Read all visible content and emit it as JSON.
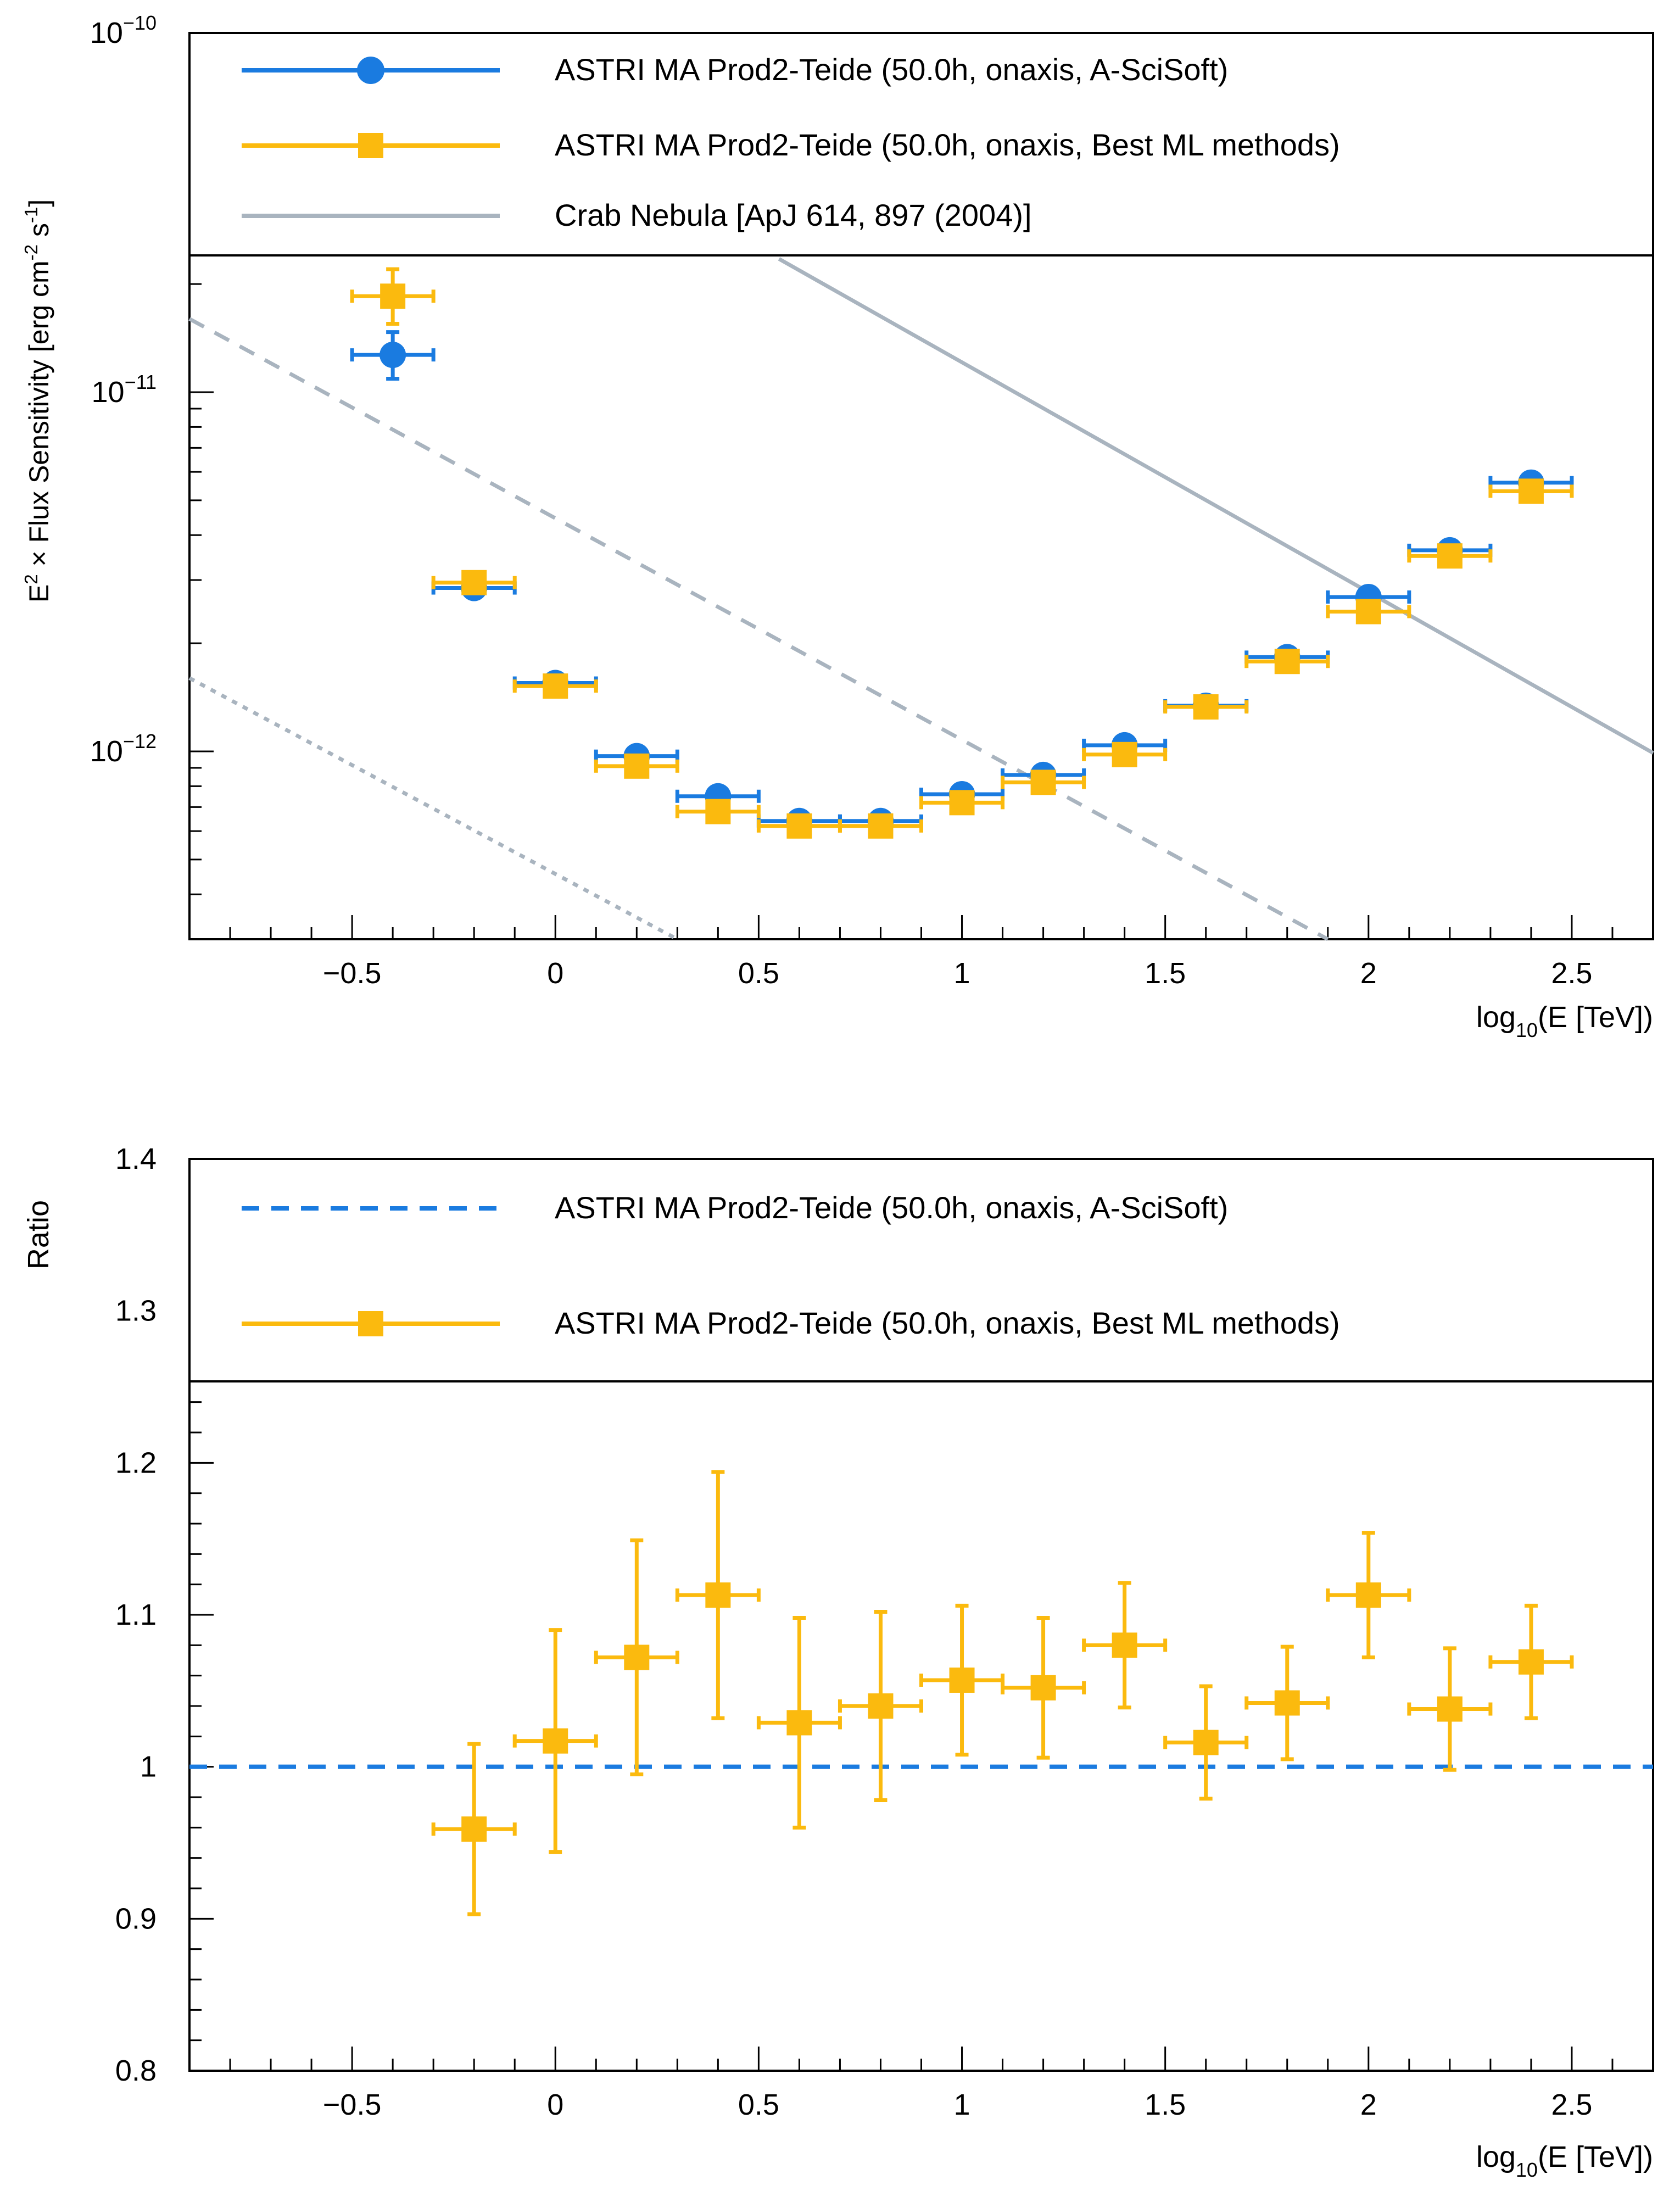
{
  "colors": {
    "blue": "#1a7be0",
    "orange": "#fbba0e",
    "gray": "#a9b4bf",
    "axis": "#000000"
  },
  "chart_data": [
    {
      "type": "scatter",
      "name": "sensitivity",
      "yscale": "log",
      "xlim": [
        -0.9,
        2.7
      ],
      "ylim": [
        3e-13,
        1e-10
      ],
      "ylabel_pre": "E",
      "ylabel_sup1": "2",
      "ylabel_mid": " × Flux Sensitivity [erg cm",
      "ylabel_sup2": "-2",
      "ylabel_mid2": " s",
      "ylabel_sup3": "-1",
      "ylabel_post": "]",
      "xlabel_pre": "log",
      "xlabel_sub": "10",
      "xlabel_post": "(E [TeV])",
      "xtick_labels": [
        "−0.5",
        "0",
        "0.5",
        "1",
        "1.5",
        "2",
        "2.5"
      ],
      "xtick_values": [
        -0.5,
        0,
        0.5,
        1,
        1.5,
        2,
        2.5
      ],
      "ytick_base": "10",
      "ytick_exps": [
        "−10",
        "−11",
        "−12"
      ],
      "ytick_values": [
        1e-10,
        1e-11,
        1e-12
      ],
      "legend": [
        {
          "label": "ASTRI MA Prod2-Teide (50.0h, onaxis, A-SciSoft)",
          "marker": "circle",
          "color": "blue"
        },
        {
          "label": "ASTRI MA Prod2-Teide (50.0h, onaxis, Best ML methods)",
          "marker": "square",
          "color": "orange"
        },
        {
          "label": "Crab Nebula [ApJ 614, 897 (2004)]",
          "marker": "none",
          "color": "gray"
        }
      ],
      "series": [
        {
          "name": "ASTRI MA Prod2-Teide (50.0h, onaxis, A-SciSoft)",
          "color": "blue",
          "marker": "circle",
          "x": [
            -0.4,
            -0.2,
            0.0,
            0.2,
            0.4,
            0.6,
            0.8,
            1.0,
            1.2,
            1.4,
            1.6,
            1.8,
            2.0,
            2.2,
            2.4
          ],
          "xerr": 0.1,
          "y": [
            1.27e-11,
            2.85e-12,
            1.55e-12,
            9.7e-13,
            7.5e-13,
            6.4e-13,
            6.4e-13,
            7.6e-13,
            8.6e-13,
            1.04e-12,
            1.34e-12,
            1.83e-12,
            2.69e-12,
            3.63e-12,
            5.6e-12
          ],
          "yerr_lo": [
            1.8e-12,
            0,
            0,
            0,
            0,
            0,
            0,
            0,
            0,
            0,
            0,
            0,
            0,
            0,
            0
          ],
          "yerr_hi": [
            2e-12,
            0,
            0,
            0,
            0,
            0,
            0,
            0,
            0,
            0,
            0,
            0,
            0,
            0,
            0
          ]
        },
        {
          "name": "ASTRI MA Prod2-Teide (50.0h, onaxis, Best ML methods)",
          "color": "orange",
          "marker": "square",
          "x": [
            -0.4,
            -0.2,
            0.0,
            0.2,
            0.4,
            0.6,
            0.8,
            1.0,
            1.2,
            1.4,
            1.6,
            1.8,
            2.0,
            2.2,
            2.4
          ],
          "xerr": 0.1,
          "y": [
            1.85e-11,
            2.95e-12,
            1.52e-12,
            9.1e-13,
            6.8e-13,
            6.2e-13,
            6.2e-13,
            7.2e-13,
            8.2e-13,
            9.8e-13,
            1.33e-12,
            1.78e-12,
            2.45e-12,
            3.5e-12,
            5.3e-12
          ],
          "yerr_lo": [
            3e-12,
            0,
            0,
            0,
            0,
            0,
            0,
            0,
            0,
            0,
            0,
            0,
            0,
            0,
            0
          ],
          "yerr_hi": [
            3.5e-12,
            0,
            0,
            0,
            0,
            0,
            0,
            0,
            0,
            0,
            0,
            0,
            0,
            0,
            0
          ]
        }
      ],
      "reference_lines": [
        {
          "name": "Crab Nebula",
          "style": "solid",
          "x": [
            0.55,
            2.7
          ],
          "y": [
            2.35e-11,
            9.9e-13
          ]
        },
        {
          "name": "Crab Nebula 10%",
          "style": "dashed",
          "x": [
            -0.9,
            1.9
          ],
          "y": [
            1.6e-11,
            3e-13
          ]
        },
        {
          "name": "Crab Nebula 1%",
          "style": "dotted",
          "x": [
            -0.9,
            0.3
          ],
          "y": [
            1.6e-12,
            3e-13
          ]
        }
      ]
    },
    {
      "type": "scatter",
      "name": "ratio",
      "xlim": [
        -0.9,
        2.7
      ],
      "ylim": [
        0.8,
        1.4
      ],
      "ylabel": "Ratio",
      "xlabel_pre": "log",
      "xlabel_sub": "10",
      "xlabel_post": "(E [TeV])",
      "xtick_labels": [
        "−0.5",
        "0",
        "0.5",
        "1",
        "1.5",
        "2",
        "2.5"
      ],
      "xtick_values": [
        -0.5,
        0,
        0.5,
        1,
        1.5,
        2,
        2.5
      ],
      "ytick_labels": [
        "0.8",
        "0.9",
        "1",
        "1.1",
        "1.2",
        "1.3",
        "1.4"
      ],
      "ytick_values": [
        0.8,
        0.9,
        1.0,
        1.1,
        1.2,
        1.3,
        1.4
      ],
      "legend": [
        {
          "label": "ASTRI MA Prod2-Teide (50.0h, onaxis, A-SciSoft)",
          "marker": "dashed-line",
          "color": "blue"
        },
        {
          "label": "ASTRI MA Prod2-Teide (50.0h, onaxis, Best ML methods)",
          "marker": "square",
          "color": "orange"
        }
      ],
      "baseline": {
        "y": 1.0,
        "style": "dashed",
        "color": "blue"
      },
      "series": [
        {
          "name": "ASTRI MA Prod2-Teide (50.0h, onaxis, Best ML methods)",
          "color": "orange",
          "marker": "square",
          "x": [
            -0.2,
            0.0,
            0.2,
            0.4,
            0.6,
            0.8,
            1.0,
            1.2,
            1.4,
            1.6,
            1.8,
            2.0,
            2.2,
            2.4
          ],
          "xerr": 0.1,
          "y": [
            0.959,
            1.017,
            1.072,
            1.113,
            1.029,
            1.04,
            1.057,
            1.052,
            1.08,
            1.016,
            1.042,
            1.113,
            1.038,
            1.069
          ],
          "yerr": [
            0.056,
            0.073,
            0.077,
            0.081,
            0.069,
            0.062,
            0.049,
            0.046,
            0.041,
            0.037,
            0.037,
            0.041,
            0.04,
            0.037
          ]
        }
      ]
    }
  ]
}
